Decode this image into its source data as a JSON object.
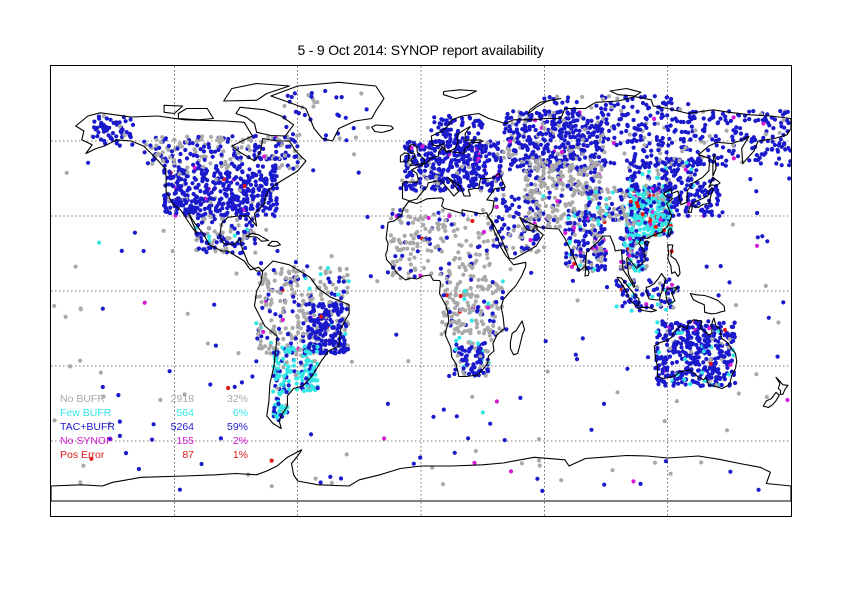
{
  "title": "5 - 9 Oct 2014: SYNOP report availability",
  "colors": {
    "no_bufr": "#a9a9a9",
    "few_bufr": "#33e6e6",
    "tac_bufr": "#1a1acc",
    "no_synop": "#d41ad4",
    "pos_error": "#e01818",
    "coastline": "#000000",
    "grid": "#000000"
  },
  "legend": [
    {
      "label": "No BUFR",
      "count": "2918",
      "pct": "32%",
      "color": "#a9a9a9"
    },
    {
      "label": "Few BUFR",
      "count": "564",
      "pct": "6%",
      "color": "#33e6e6"
    },
    {
      "label": "TAC+BUFR",
      "count": "5264",
      "pct": "59%",
      "color": "#1a1acc"
    },
    {
      "label": "No SYNOP",
      "count": "155",
      "pct": "2%",
      "color": "#d41ad4"
    },
    {
      "label": "Pos Error",
      "count": "87",
      "pct": "1%",
      "color": "#e01818"
    }
  ],
  "map": {
    "projection": "equirectangular",
    "lon_range": [
      -180,
      180
    ],
    "lat_range": [
      -90,
      90
    ],
    "graticule_lon": [
      -120,
      -60,
      0,
      60,
      120
    ],
    "graticule_lat": [
      -60,
      -30,
      0,
      30,
      60
    ],
    "graticule_style": "dotted"
  }
}
